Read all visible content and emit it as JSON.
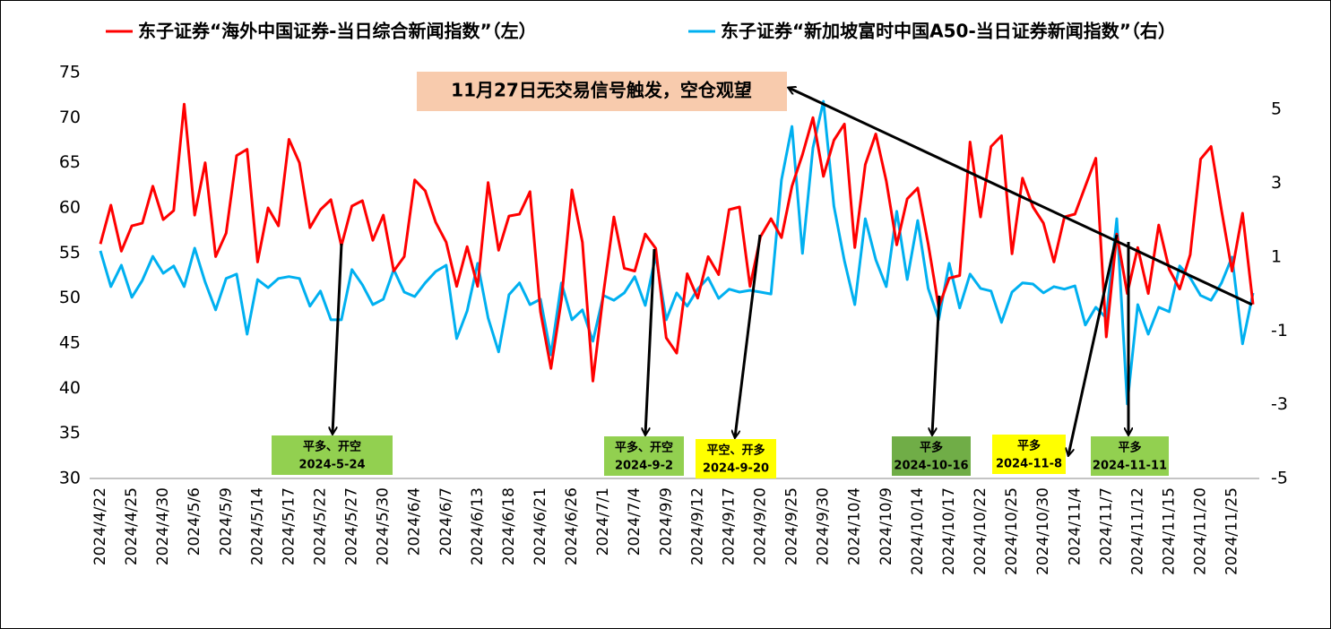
{
  "chart_data": {
    "type": "line",
    "categories": [
      "2024/4/22",
      null,
      null,
      "2024/4/25",
      null,
      null,
      "2024/4/30",
      null,
      null,
      "2024/5/6",
      null,
      null,
      "2024/5/9",
      null,
      null,
      "2024/5/14",
      null,
      null,
      "2024/5/17",
      null,
      null,
      "2024/5/22",
      null,
      null,
      "2024/5/27",
      null,
      null,
      "2024/5/30",
      null,
      null,
      "2024/6/4",
      null,
      null,
      "2024/6/7",
      null,
      null,
      "2024/6/13",
      null,
      null,
      "2024/6/18",
      null,
      null,
      "2024/6/21",
      null,
      null,
      "2024/6/26",
      null,
      null,
      "2024/7/1",
      null,
      null,
      "2024/7/4",
      null,
      null,
      "2024/9/9",
      null,
      null,
      "2024/9/12",
      null,
      null,
      "2024/9/17",
      null,
      null,
      "2024/9/20",
      null,
      null,
      "2024/9/25",
      null,
      null,
      "2024/9/30",
      null,
      null,
      "2024/10/4",
      null,
      null,
      "2024/10/9",
      null,
      null,
      "2024/10/14",
      null,
      null,
      "2024/10/17",
      null,
      null,
      "2024/10/22",
      null,
      null,
      "2024/10/25",
      null,
      null,
      "2024/10/30",
      null,
      null,
      "2024/11/4",
      null,
      null,
      "2024/11/7",
      null,
      null,
      "2024/11/12",
      null,
      null,
      "2024/11/15",
      null,
      null,
      "2024/11/20",
      null,
      null,
      "2024/11/25",
      null,
      null
    ],
    "series": [
      {
        "name": "东子证券“海外中国证券-当日综合新闻指数”（左）",
        "color": "#ff0000",
        "axis": "y",
        "values": [
          56,
          60.3,
          55.2,
          58,
          58.3,
          62.4,
          58.7,
          59.7,
          71.5,
          59.2,
          65,
          54.6,
          57.2,
          65.8,
          66.5,
          54,
          60,
          58,
          67.6,
          65,
          57.8,
          59.8,
          60.9,
          55.8,
          60.2,
          60.8,
          56.4,
          59.2,
          53,
          54.6,
          63.1,
          61.9,
          58.4,
          56.2,
          51.3,
          55.7,
          51.3,
          62.8,
          55.3,
          59.1,
          59.3,
          61.8,
          48.5,
          42.2,
          49.8,
          62,
          56.2,
          40.8,
          50.5,
          59,
          53.3,
          53,
          57.1,
          55.5,
          45.6,
          43.9,
          52.7,
          50,
          54.6,
          52.6,
          59.8,
          60.1,
          51.3,
          56.8,
          58.8,
          56.7,
          62.4,
          65.9,
          70,
          63.5,
          67.5,
          69.3,
          55.6,
          64.8,
          68.2,
          63,
          55.9,
          61,
          62.2,
          56,
          49,
          52.2,
          52.5,
          67.3,
          59,
          66.8,
          68,
          54.9,
          63.3,
          60.1,
          58.3,
          54,
          59,
          59.3,
          62.4,
          65.5,
          45.7,
          57.1,
          50.5,
          55.6,
          50.5,
          58.1,
          53.2,
          51,
          54.8,
          65.4,
          66.8,
          59.7,
          53,
          59.4,
          49.3
        ]
      },
      {
        "name": "东子证券“新加坡富时中国A50-当日证券新闻指数”（右）",
        "color": "#00b0f0",
        "axis": "y2",
        "values": [
          1.17,
          0.2,
          0.78,
          -0.09,
          0.37,
          1.02,
          0.56,
          0.76,
          0.2,
          1.24,
          0.32,
          -0.43,
          0.42,
          0.54,
          -1.09,
          0.39,
          0.17,
          0.42,
          0.47,
          0.42,
          -0.33,
          0.08,
          -0.7,
          -0.7,
          0.66,
          0.25,
          -0.29,
          -0.14,
          0.66,
          0.05,
          -0.07,
          0.3,
          0.61,
          0.78,
          -1.21,
          -0.46,
          0.83,
          -0.65,
          -1.57,
          -0.02,
          0.3,
          -0.29,
          -0.14,
          -1.65,
          0.3,
          -0.7,
          -0.43,
          -1.28,
          -0.04,
          -0.17,
          0.03,
          0.47,
          -0.31,
          1.05,
          -0.7,
          0.03,
          -0.33,
          0.13,
          0.44,
          -0.12,
          0.13,
          0.05,
          0.1,
          0.05,
          0,
          3.09,
          4.54,
          1.1,
          3.96,
          5.22,
          2.38,
          0.9,
          -0.29,
          2.04,
          0.93,
          0.2,
          2.24,
          0.39,
          1.99,
          0.15,
          -0.7,
          0.83,
          -0.38,
          0.54,
          0.15,
          0.08,
          -0.77,
          0.05,
          0.3,
          0.27,
          0.03,
          0.2,
          0.13,
          0.22,
          -0.84,
          -0.36,
          -0.65,
          2.04,
          -2.98,
          -0.29,
          -1.09,
          -0.36,
          -0.48,
          0.76,
          0.44,
          -0.04,
          -0.17,
          0.3,
          1.0,
          -1.35,
          0.03
        ]
      }
    ],
    "ylim": [
      30,
      75
    ],
    "yticks": [
      30,
      35,
      40,
      45,
      50,
      55,
      60,
      65,
      70,
      75
    ],
    "y2lim": [
      -5,
      6
    ],
    "y2ticks": [
      -5,
      -3,
      -1,
      1,
      3,
      5
    ],
    "grid": false,
    "legend": "top",
    "top_annotation": {
      "text": "11月27日无交易信号触发，空仓观望",
      "color": "#f8cbad"
    },
    "annotations": [
      {
        "text": "平多、开空",
        "date": "2024-5-24",
        "color": "#92d050"
      },
      {
        "text": "平多、开空",
        "date": "2024-9-2",
        "color": "#92d050"
      },
      {
        "text": "平空、开多",
        "date": "2024-9-20",
        "color": "#ffff00"
      },
      {
        "text": "平多",
        "date": "2024-10-16",
        "color": "#70ad47"
      },
      {
        "text": "平多",
        "date": "2024-11-8",
        "color": "#ffff00"
      },
      {
        "text": "平多",
        "date": "2024-11-11",
        "color": "#92d050"
      }
    ]
  }
}
